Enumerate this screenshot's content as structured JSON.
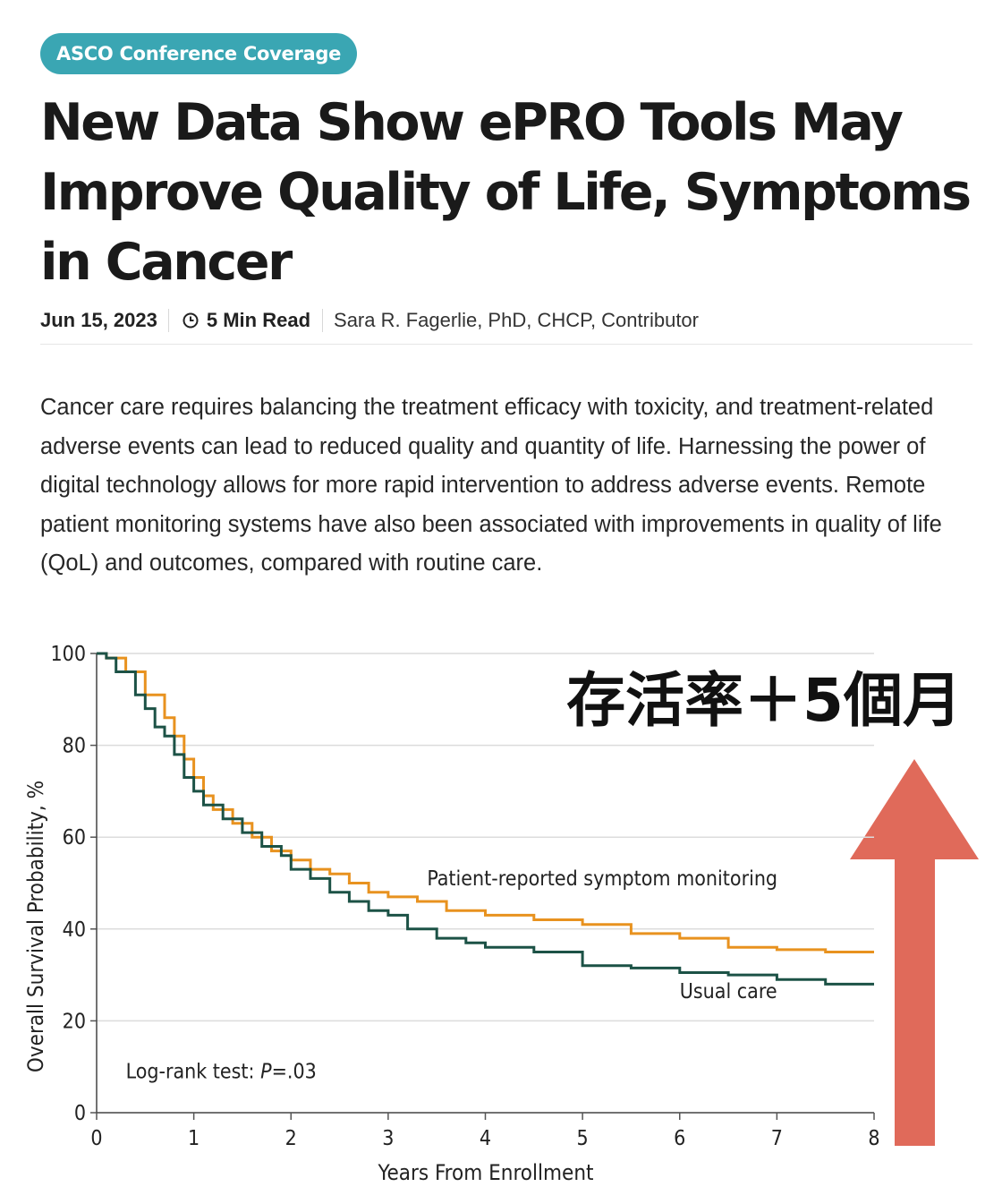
{
  "badge": "ASCO Conference Coverage",
  "headline": "New Data Show ePRO Tools May Improve Quality of Life, Symptoms in Cancer",
  "meta": {
    "date": "Jun 15, 2023",
    "read_time": "5 Min Read",
    "author": "Sara R. Fagerlie, PhD, CHCP, Contributor",
    "read_icon": "clock-icon"
  },
  "intro": "Cancer care requires balancing the treatment efficacy with toxicity, and treatment-related adverse events can lead to reduced quality and quantity of life. Harnessing the power of digital technology allows for more rapid intervention to address adverse events. Remote patient monitoring systems have also been associated with improvements in quality of life (QoL) and outcomes, compared with routine care.",
  "chart_data": {
    "type": "line",
    "step": true,
    "xlabel": "Years From Enrollment",
    "ylabel": "Overall Survival Probability, %",
    "xlim": [
      0,
      8
    ],
    "ylim": [
      0,
      100
    ],
    "xticks": [
      0,
      1,
      2,
      3,
      4,
      5,
      6,
      7,
      8
    ],
    "yticks": [
      0,
      20,
      40,
      60,
      80,
      100
    ],
    "grid": "horizontal",
    "series": [
      {
        "name": "Patient-reported symptom monitoring",
        "color": "#e8921f",
        "x": [
          0,
          0.1,
          0.3,
          0.5,
          0.7,
          0.8,
          0.9,
          1.0,
          1.1,
          1.2,
          1.4,
          1.6,
          1.8,
          2.0,
          2.2,
          2.4,
          2.6,
          2.8,
          3.0,
          3.3,
          3.6,
          4.0,
          4.5,
          5.0,
          5.5,
          6.0,
          6.5,
          7.0,
          7.5,
          8.0
        ],
        "y": [
          100,
          99,
          96,
          91,
          86,
          82,
          77,
          73,
          69,
          66,
          63,
          60,
          57,
          55,
          53,
          52,
          50,
          48,
          47,
          46,
          44,
          43,
          42,
          41,
          39,
          38,
          36,
          35.5,
          35,
          35
        ]
      },
      {
        "name": "Usual care",
        "color": "#1c5246",
        "x": [
          0,
          0.1,
          0.2,
          0.4,
          0.5,
          0.6,
          0.7,
          0.8,
          0.9,
          1.0,
          1.1,
          1.3,
          1.5,
          1.7,
          1.9,
          2.0,
          2.2,
          2.4,
          2.6,
          2.8,
          3.0,
          3.2,
          3.5,
          3.8,
          4.0,
          4.5,
          5.0,
          5.5,
          6.0,
          6.5,
          7.0,
          7.5,
          8.0
        ],
        "y": [
          100,
          99,
          96,
          91,
          88,
          84,
          82,
          78,
          73,
          70,
          67,
          64,
          61,
          58,
          56,
          53,
          51,
          48,
          46,
          44,
          43,
          40,
          38,
          37,
          36,
          35,
          32,
          31.5,
          30.5,
          30,
          29,
          28,
          28
        ]
      }
    ],
    "annotations": [
      {
        "text": "Patient-reported symptom monitoring",
        "x": 3.4,
        "y": 49.5
      },
      {
        "text": "Usual care",
        "x": 6.0,
        "y": 25
      },
      {
        "text": "Log-rank test: ",
        "italic_part": "P",
        "suffix": "=.03",
        "x": 0.3,
        "y": 7.5
      }
    ],
    "overlay": {
      "text": "存活率＋5個月",
      "arrow": "up",
      "arrow_color": "#e06a5a"
    }
  }
}
